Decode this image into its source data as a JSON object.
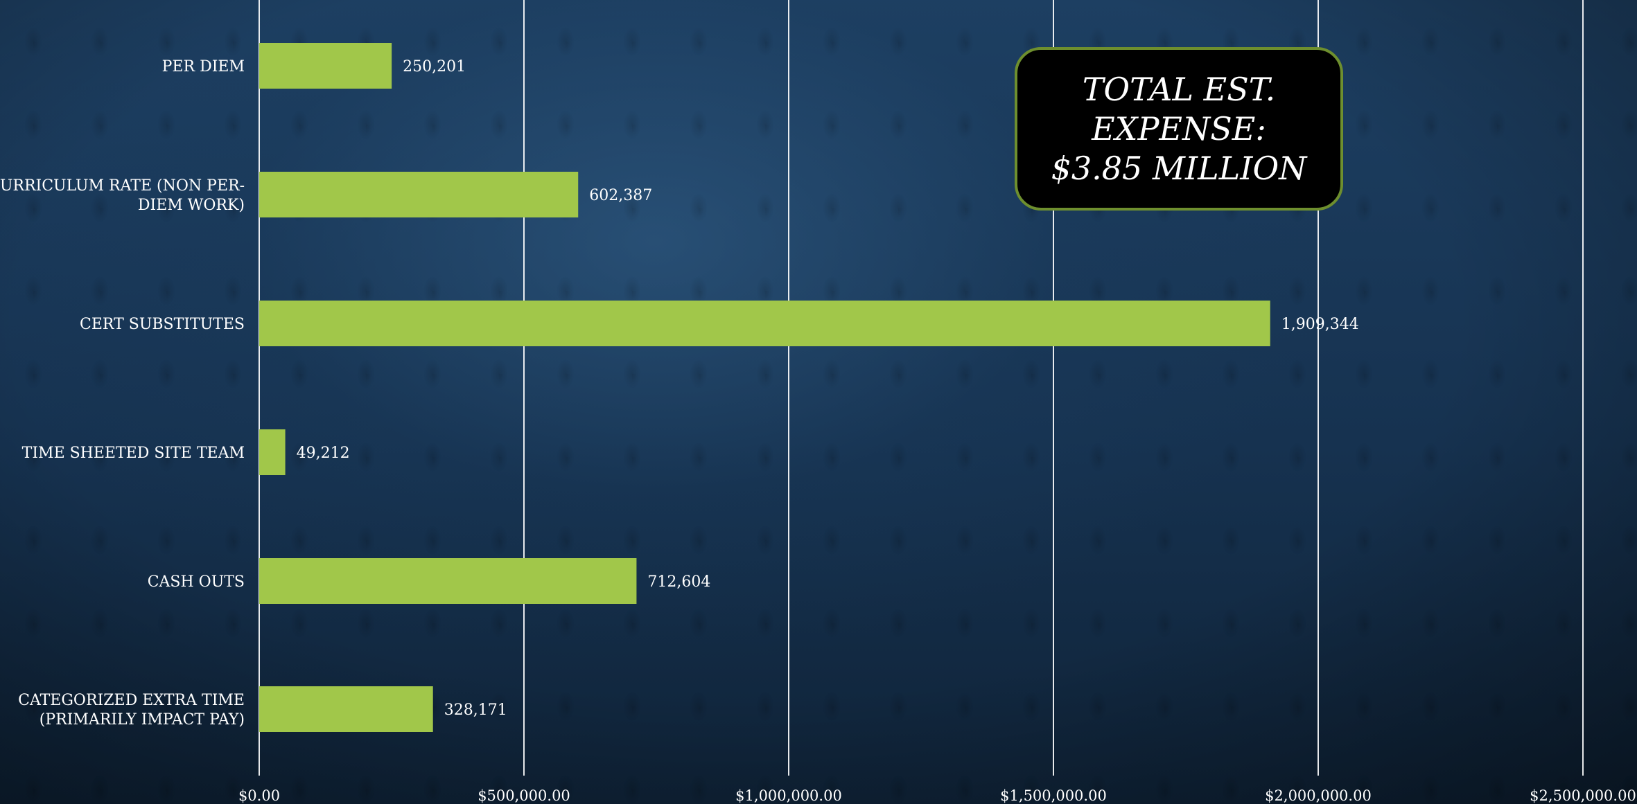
{
  "chart_data": {
    "type": "bar",
    "orientation": "horizontal",
    "categories": [
      "PER DIEM",
      "CURRICULUM RATE (NON PER-DIEM WORK)",
      "CERT SUBSTITUTES",
      "TIME SHEETED SITE TEAM",
      "CASH OUTS",
      "CATEGORIZED EXTRA TIME (PRIMARILY IMPACT PAY)"
    ],
    "values": [
      250201,
      602387,
      1909344,
      49212,
      712604,
      328171
    ],
    "data_labels": [
      "250,201",
      "602,387",
      "1,909,344",
      "49,212",
      "712,604",
      "328,171"
    ],
    "x_ticks": [
      "$0.00",
      "$500,000.00",
      "$1,000,000.00",
      "$1,500,000.00",
      "$2,000,000.00",
      "$2,500,000.00"
    ],
    "xlim": [
      0,
      2500000
    ],
    "grid": true,
    "bar_color": "#a1c74a",
    "title": "",
    "xlabel": "",
    "ylabel": ""
  },
  "callout": {
    "text": "TOTAL EST. EXPENSE: $3.85 MILLION"
  },
  "colors": {
    "bar": "#a1c74a",
    "callout_border": "#6e8f2e",
    "gridline": "#ffffff"
  }
}
